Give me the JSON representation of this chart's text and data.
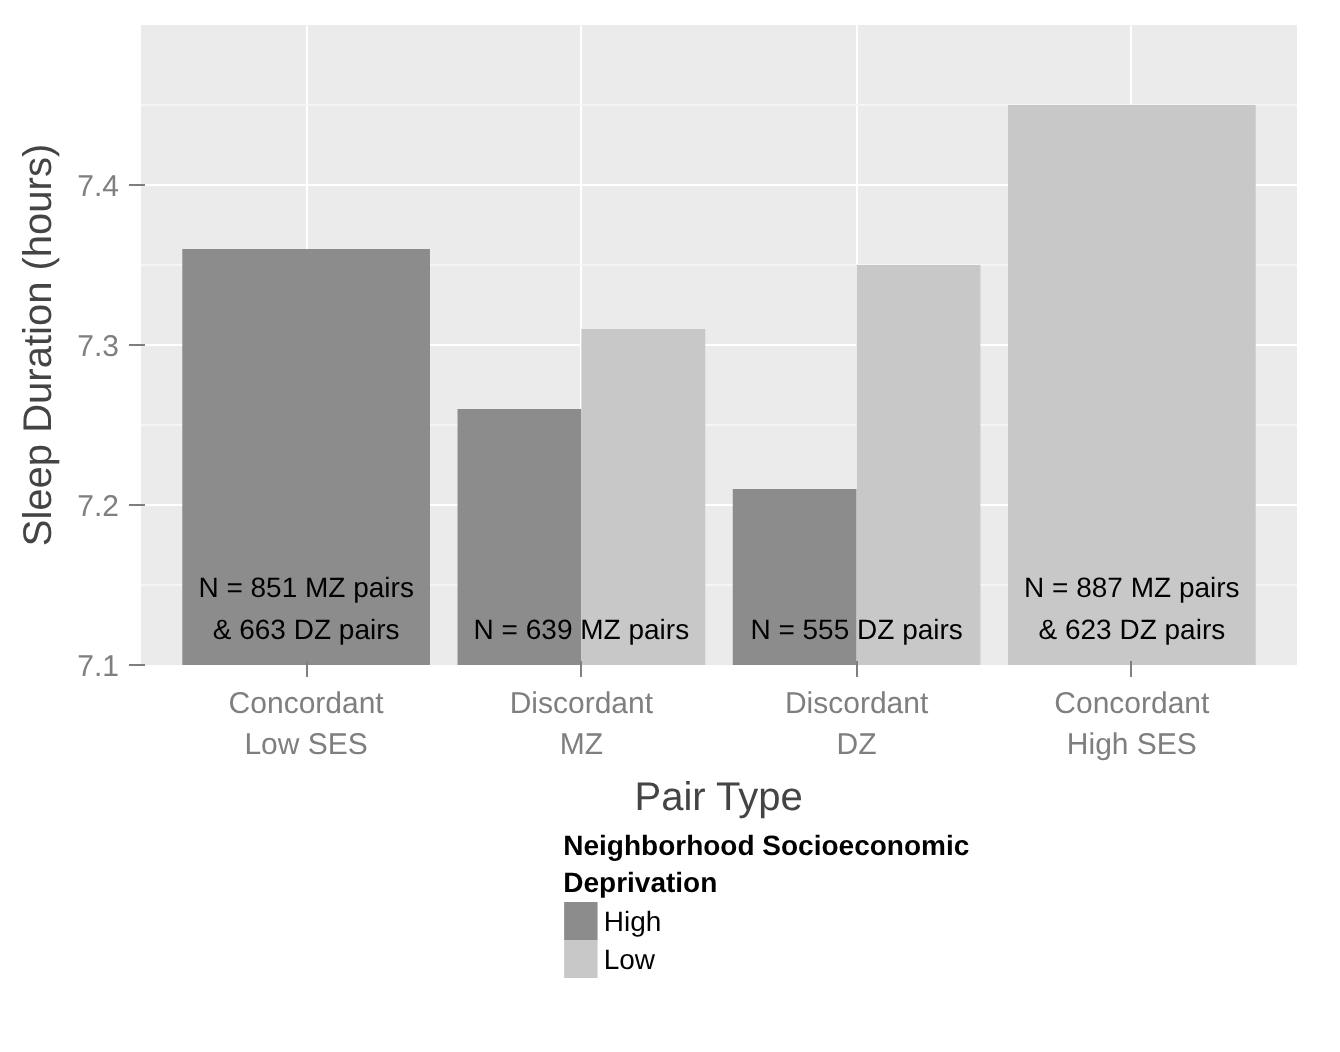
{
  "chart_data": {
    "type": "bar",
    "xlabel": "Pair Type",
    "ylabel": "Sleep Duration (hours)",
    "legend_title": "Neighborhood Socioeconomic\n Deprivation",
    "categories": [
      "Concordant\nLow SES",
      "Discordant\nMZ",
      "Discordant\nDZ",
      "Concordant\nHigh SES"
    ],
    "series": [
      {
        "name": "High",
        "color": "#8c8c8c",
        "values": [
          7.36,
          7.26,
          7.21,
          null
        ]
      },
      {
        "name": "Low",
        "color": "#c8c8c8",
        "values": [
          null,
          7.31,
          7.35,
          7.45
        ]
      }
    ],
    "ylim": [
      7.1,
      7.5
    ],
    "yticks": [
      7.1,
      7.2,
      7.3,
      7.4
    ],
    "grid": true,
    "legend": "bottom",
    "annotations": [
      "N = 851 MZ pairs\n& 663 DZ pairs",
      "N = 639 MZ pairs",
      "N = 555 DZ pairs",
      "N = 887 MZ pairs\n& 623 DZ pairs"
    ]
  }
}
